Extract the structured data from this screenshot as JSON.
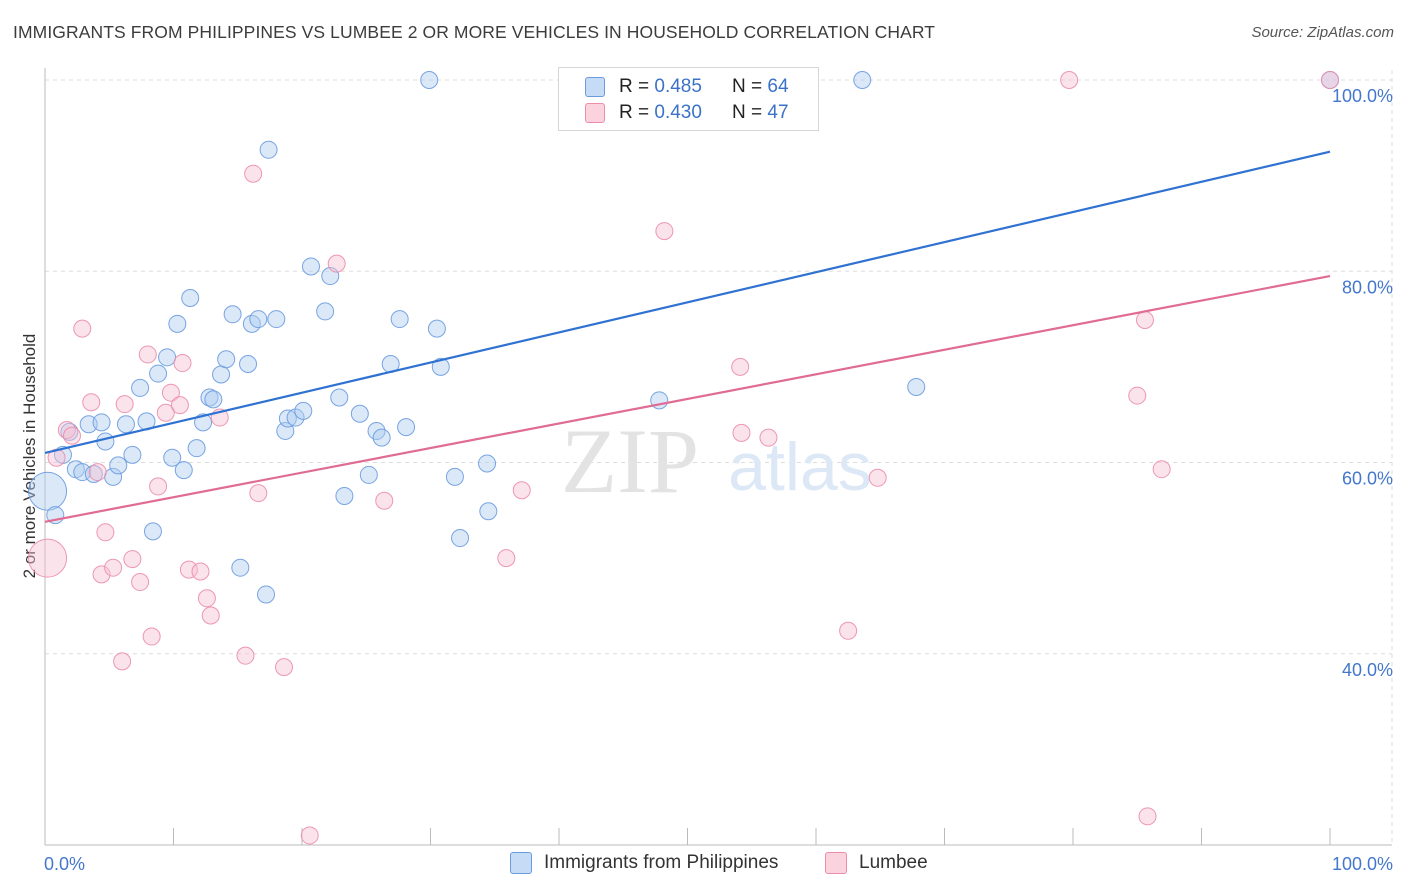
{
  "title": "IMMIGRANTS FROM PHILIPPINES VS LUMBEE 2 OR MORE VEHICLES IN HOUSEHOLD CORRELATION CHART",
  "source": "Source: ZipAtlas.com",
  "watermark": {
    "zip": "ZIP",
    "atlas": "atlas"
  },
  "legend_top": {
    "rows": [
      {
        "r_label": "R = ",
        "r_value": "0.485",
        "n_label": "N = ",
        "n_value": "64"
      },
      {
        "r_label": "R = ",
        "r_value": "0.430",
        "n_label": "N = ",
        "n_value": "47"
      }
    ]
  },
  "legend_bottom": {
    "items": [
      {
        "label": "Immigrants from Philippines"
      },
      {
        "label": "Lumbee"
      }
    ]
  },
  "colors": {
    "blue_fill": "#aecbf0",
    "blue_stroke": "#6a9be0",
    "blue_line": "#2f72d2",
    "pink_fill": "#f7c1d2",
    "pink_stroke": "#eb8dab",
    "pink_line": "#e06b93",
    "axis_text": "#4477cc",
    "grid": "#dddddd"
  },
  "chart_data": {
    "type": "scatter",
    "title": "IMMIGRANTS FROM PHILIPPINES VS LUMBEE 2 OR MORE VEHICLES IN HOUSEHOLD CORRELATION CHART",
    "xlabel": "",
    "ylabel": "2 or more Vehicles in Household",
    "xlim": [
      0,
      100
    ],
    "ylim": [
      20,
      102
    ],
    "x_tick_labels": [
      "0.0%",
      "100.0%"
    ],
    "y_ticks": [
      40,
      60,
      80,
      100
    ],
    "y_tick_labels": [
      "40.0%",
      "60.0%",
      "80.0%",
      "100.0%"
    ],
    "grid": true,
    "legend_position": "top-center",
    "series": [
      {
        "name": "Immigrants from Philippines",
        "color": "#aecbf0",
        "trend": {
          "x": [
            0,
            100
          ],
          "y": [
            61.0,
            92.5
          ]
        },
        "points": [
          {
            "x": 0.2,
            "y": 57.0,
            "big": true
          },
          {
            "x": 0.8,
            "y": 54.5
          },
          {
            "x": 1.4,
            "y": 60.8
          },
          {
            "x": 1.9,
            "y": 63.2
          },
          {
            "x": 2.4,
            "y": 59.3
          },
          {
            "x": 2.9,
            "y": 59.0
          },
          {
            "x": 3.4,
            "y": 64.0
          },
          {
            "x": 3.8,
            "y": 58.8
          },
          {
            "x": 4.4,
            "y": 64.2
          },
          {
            "x": 4.7,
            "y": 62.2
          },
          {
            "x": 5.3,
            "y": 58.5
          },
          {
            "x": 5.7,
            "y": 59.7
          },
          {
            "x": 6.3,
            "y": 64.0
          },
          {
            "x": 6.8,
            "y": 60.8
          },
          {
            "x": 7.4,
            "y": 67.8
          },
          {
            "x": 7.9,
            "y": 64.3
          },
          {
            "x": 8.4,
            "y": 52.8
          },
          {
            "x": 8.8,
            "y": 69.3
          },
          {
            "x": 9.5,
            "y": 71.0
          },
          {
            "x": 9.9,
            "y": 60.5
          },
          {
            "x": 10.3,
            "y": 74.5
          },
          {
            "x": 10.8,
            "y": 59.2
          },
          {
            "x": 11.3,
            "y": 77.2
          },
          {
            "x": 11.8,
            "y": 61.5
          },
          {
            "x": 12.3,
            "y": 64.2
          },
          {
            "x": 12.8,
            "y": 66.8
          },
          {
            "x": 13.1,
            "y": 66.6
          },
          {
            "x": 13.7,
            "y": 69.2
          },
          {
            "x": 14.1,
            "y": 70.8
          },
          {
            "x": 14.6,
            "y": 75.5
          },
          {
            "x": 15.2,
            "y": 49.0
          },
          {
            "x": 15.8,
            "y": 70.3
          },
          {
            "x": 16.1,
            "y": 74.5
          },
          {
            "x": 16.6,
            "y": 75.0
          },
          {
            "x": 17.2,
            "y": 46.2
          },
          {
            "x": 17.4,
            "y": 92.7
          },
          {
            "x": 18.0,
            "y": 75.0
          },
          {
            "x": 18.7,
            "y": 63.3
          },
          {
            "x": 18.9,
            "y": 64.6
          },
          {
            "x": 19.5,
            "y": 64.7
          },
          {
            "x": 20.1,
            "y": 65.4
          },
          {
            "x": 20.7,
            "y": 80.5
          },
          {
            "x": 21.8,
            "y": 75.8
          },
          {
            "x": 22.2,
            "y": 79.5
          },
          {
            "x": 22.9,
            "y": 66.8
          },
          {
            "x": 23.3,
            "y": 56.5
          },
          {
            "x": 24.5,
            "y": 65.1
          },
          {
            "x": 25.2,
            "y": 58.7
          },
          {
            "x": 25.8,
            "y": 63.3
          },
          {
            "x": 26.2,
            "y": 62.6
          },
          {
            "x": 26.9,
            "y": 70.3
          },
          {
            "x": 27.6,
            "y": 75.0
          },
          {
            "x": 28.1,
            "y": 63.7
          },
          {
            "x": 29.9,
            "y": 100.0
          },
          {
            "x": 30.5,
            "y": 74.0
          },
          {
            "x": 30.8,
            "y": 70.0
          },
          {
            "x": 31.9,
            "y": 58.5
          },
          {
            "x": 32.3,
            "y": 52.1
          },
          {
            "x": 34.4,
            "y": 59.9
          },
          {
            "x": 34.5,
            "y": 54.9
          },
          {
            "x": 47.8,
            "y": 66.5
          },
          {
            "x": 63.6,
            "y": 100.0
          },
          {
            "x": 67.8,
            "y": 67.9
          },
          {
            "x": 100.0,
            "y": 100.0
          }
        ]
      },
      {
        "name": "Lumbee",
        "color": "#f7c1d2",
        "trend": {
          "x": [
            0,
            100
          ],
          "y": [
            53.8,
            79.5
          ]
        },
        "points": [
          {
            "x": 0.2,
            "y": 50.0,
            "big": true
          },
          {
            "x": 0.9,
            "y": 60.5
          },
          {
            "x": 1.7,
            "y": 63.4
          },
          {
            "x": 2.1,
            "y": 62.8
          },
          {
            "x": 2.9,
            "y": 74.0
          },
          {
            "x": 3.6,
            "y": 66.3
          },
          {
            "x": 4.1,
            "y": 59.0
          },
          {
            "x": 4.4,
            "y": 48.3
          },
          {
            "x": 4.7,
            "y": 52.7
          },
          {
            "x": 5.3,
            "y": 49.0
          },
          {
            "x": 6.0,
            "y": 39.2
          },
          {
            "x": 6.2,
            "y": 66.1
          },
          {
            "x": 6.8,
            "y": 49.9
          },
          {
            "x": 7.4,
            "y": 47.5
          },
          {
            "x": 8.0,
            "y": 71.3
          },
          {
            "x": 8.3,
            "y": 41.8
          },
          {
            "x": 8.8,
            "y": 57.5
          },
          {
            "x": 9.4,
            "y": 65.2
          },
          {
            "x": 9.8,
            "y": 67.3
          },
          {
            "x": 10.5,
            "y": 66.0
          },
          {
            "x": 10.7,
            "y": 70.4
          },
          {
            "x": 11.2,
            "y": 48.8
          },
          {
            "x": 12.1,
            "y": 48.6
          },
          {
            "x": 12.6,
            "y": 45.8
          },
          {
            "x": 12.9,
            "y": 44.0
          },
          {
            "x": 13.6,
            "y": 64.7
          },
          {
            "x": 15.6,
            "y": 39.8
          },
          {
            "x": 16.2,
            "y": 90.2
          },
          {
            "x": 16.6,
            "y": 56.8
          },
          {
            "x": 18.6,
            "y": 38.6
          },
          {
            "x": 20.6,
            "y": 21.0
          },
          {
            "x": 22.7,
            "y": 80.8
          },
          {
            "x": 26.4,
            "y": 56.0
          },
          {
            "x": 35.9,
            "y": 50.0
          },
          {
            "x": 37.1,
            "y": 57.1
          },
          {
            "x": 48.2,
            "y": 84.2
          },
          {
            "x": 54.1,
            "y": 70.0
          },
          {
            "x": 54.2,
            "y": 63.1
          },
          {
            "x": 56.3,
            "y": 62.6
          },
          {
            "x": 62.5,
            "y": 42.4
          },
          {
            "x": 64.8,
            "y": 58.4
          },
          {
            "x": 79.7,
            "y": 100.0
          },
          {
            "x": 85.0,
            "y": 67.0
          },
          {
            "x": 85.6,
            "y": 74.9
          },
          {
            "x": 85.8,
            "y": 23.0
          },
          {
            "x": 86.9,
            "y": 59.3
          },
          {
            "x": 100.0,
            "y": 100.0
          }
        ]
      }
    ]
  }
}
